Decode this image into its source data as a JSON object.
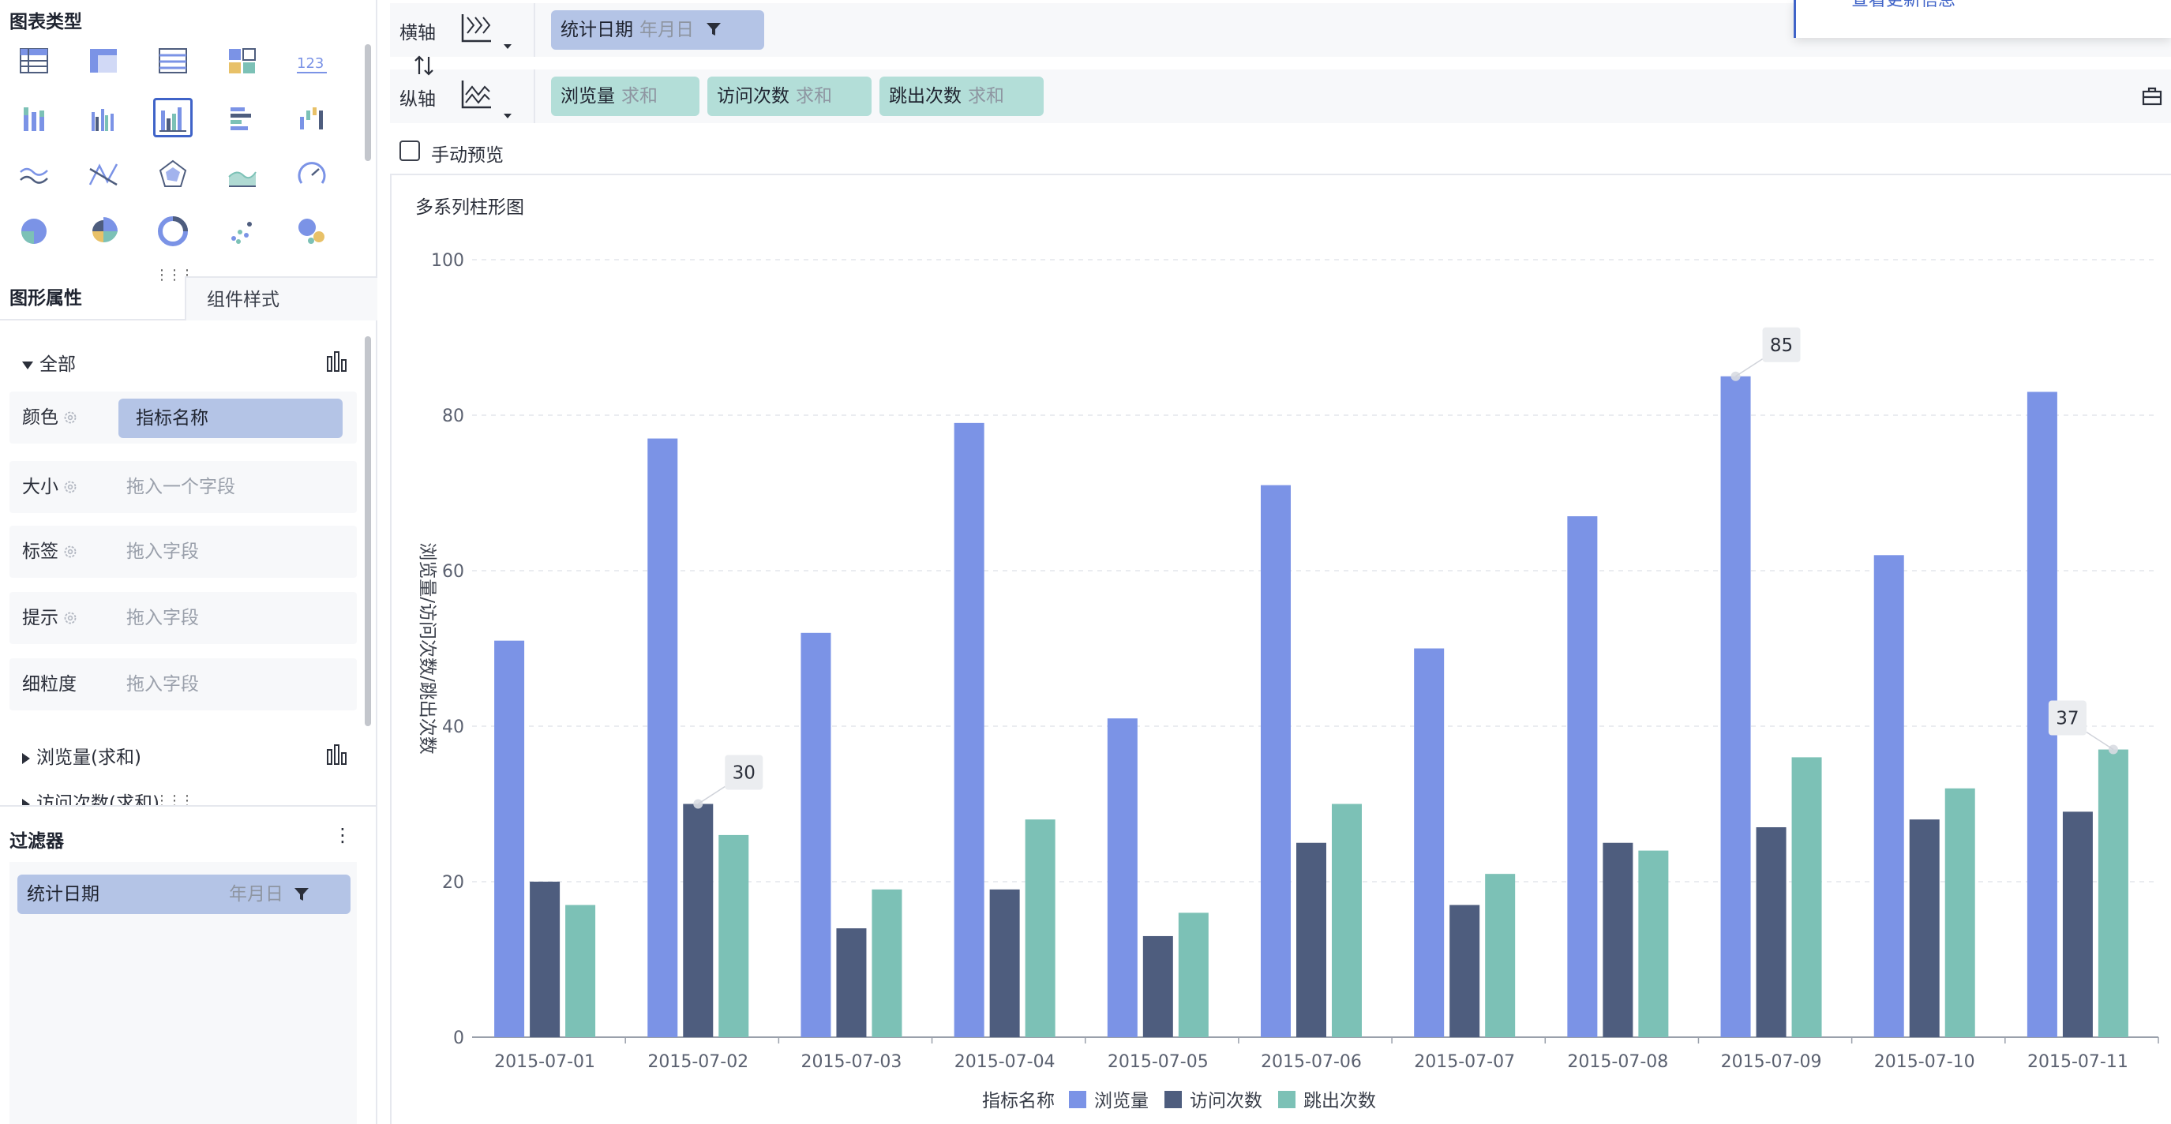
{
  "left_panel": {
    "chart_types_title": "图表类型",
    "chart_type_icons": [
      "table-icon",
      "cross-table-icon",
      "detail-table-icon",
      "kpi-card-icon",
      "number-icon",
      "stacked-bar-icon",
      "grouped-bar-icon",
      "multi-series-bar-icon",
      "horizontal-bar-icon",
      "waterfall-icon",
      "line-icon",
      "scatter-line-icon",
      "radar-icon",
      "area-icon",
      "gauge-icon",
      "pie-icon",
      "rose-pie-icon",
      "donut-icon",
      "scatter-icon",
      "bubble-icon"
    ],
    "tabs": {
      "active": "图形属性",
      "inactive": "组件样式"
    },
    "all_label": "全部",
    "props": [
      {
        "label": "颜色",
        "value": "指标名称",
        "filled": true
      },
      {
        "label": "大小",
        "value": "拖入一个字段",
        "filled": false
      },
      {
        "label": "标签",
        "value": "拖入字段",
        "filled": false
      },
      {
        "label": "提示",
        "value": "拖入字段",
        "filled": false
      },
      {
        "label": "细粒度",
        "value": "拖入字段",
        "filled": false
      }
    ],
    "series_expander": "浏览量(求和)",
    "next_expander_partial": "访问次数(求和)",
    "filter": {
      "title": "过滤器",
      "field": "统计日期",
      "granularity": "年月日"
    }
  },
  "shelf": {
    "x_axis": {
      "label": "横轴",
      "pill": {
        "name": "统计日期",
        "sub": "年月日"
      }
    },
    "y_axis": {
      "label": "纵轴",
      "pills": [
        {
          "name": "浏览量",
          "sub": "求和"
        },
        {
          "name": "访问次数",
          "sub": "求和"
        },
        {
          "name": "跳出次数",
          "sub": "求和"
        }
      ]
    },
    "notification_partial": "查看更新信息",
    "manual_preview": "手动预览"
  },
  "chart_data": {
    "type": "bar",
    "title": "多系列柱形图",
    "ylabel": "浏览量/访问次数/跳出次数",
    "ylim": [
      0,
      100
    ],
    "yticks": [
      0,
      20,
      40,
      60,
      80,
      100
    ],
    "grid": true,
    "legend_position": "bottom",
    "legend_title": "指标名称",
    "categories": [
      "2015-07-01",
      "2015-07-02",
      "2015-07-03",
      "2015-07-04",
      "2015-07-05",
      "2015-07-06",
      "2015-07-07",
      "2015-07-08",
      "2015-07-09",
      "2015-07-10",
      "2015-07-11"
    ],
    "series": [
      {
        "name": "浏览量",
        "color": "#7b93e6",
        "values": [
          51,
          77,
          52,
          79,
          41,
          71,
          50,
          67,
          85,
          62,
          83
        ]
      },
      {
        "name": "访问次数",
        "color": "#4e5d7e",
        "values": [
          20,
          30,
          14,
          19,
          13,
          25,
          17,
          25,
          27,
          28,
          29
        ]
      },
      {
        "name": "跳出次数",
        "color": "#7cc1b6",
        "values": [
          17,
          26,
          19,
          28,
          16,
          30,
          21,
          24,
          36,
          32,
          37
        ]
      }
    ],
    "annotations": [
      {
        "series": 1,
        "category": 1,
        "text": "30"
      },
      {
        "series": 0,
        "category": 8,
        "text": "85"
      },
      {
        "series": 2,
        "category": 10,
        "text": "37"
      }
    ]
  }
}
